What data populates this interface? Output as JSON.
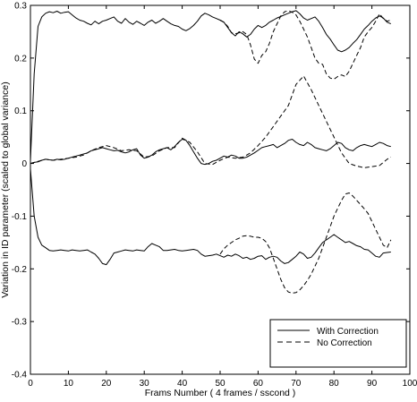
{
  "chart_data": {
    "type": "line",
    "title": "",
    "xlabel": "Frams Number ( 4 frames / sscond )",
    "ylabel": "Variation in ID parameter (scaled to global variance)",
    "xlim": [
      0,
      100
    ],
    "ylim": [
      -0.4,
      0.3
    ],
    "xticks": [
      "0",
      "10",
      "20",
      "30",
      "40",
      "50",
      "60",
      "70",
      "80",
      "90",
      "100"
    ],
    "yticks": [
      "-0.4",
      "-0.3",
      "-0.2",
      "-0.1",
      "0",
      "0.1",
      "0.2",
      "0.3"
    ],
    "grid": false,
    "legend_position": "bottom-right",
    "legend": [
      "With Correction",
      "No Correction"
    ],
    "series": [
      {
        "name": "With Correction",
        "style": "solid",
        "group": "upper",
        "x": [
          0,
          1,
          2,
          3,
          4,
          5,
          6,
          7,
          8,
          9,
          10,
          11,
          12,
          13,
          14,
          15,
          16,
          17,
          18,
          19,
          20,
          21,
          22,
          23,
          24,
          25,
          26,
          27,
          28,
          29,
          30,
          31,
          32,
          33,
          34,
          35,
          36,
          37,
          38,
          39,
          40,
          41,
          42,
          43,
          44,
          45,
          46,
          47,
          48,
          49,
          50,
          51,
          52,
          53,
          54,
          55,
          56,
          57,
          58,
          59,
          60,
          61,
          62,
          63,
          64,
          65,
          66,
          67,
          68,
          69,
          70,
          71,
          72,
          73,
          74,
          75,
          76,
          77,
          78,
          79,
          80,
          81,
          82,
          83,
          84,
          85,
          86,
          87,
          88,
          89,
          90,
          91,
          92,
          93,
          94,
          95
        ],
        "y": [
          0.005,
          0.17,
          0.26,
          0.278,
          0.285,
          0.288,
          0.286,
          0.289,
          0.285,
          0.287,
          0.288,
          0.282,
          0.276,
          0.272,
          0.27,
          0.266,
          0.263,
          0.27,
          0.265,
          0.27,
          0.272,
          0.275,
          0.278,
          0.27,
          0.266,
          0.275,
          0.268,
          0.264,
          0.27,
          0.266,
          0.262,
          0.268,
          0.272,
          0.266,
          0.27,
          0.275,
          0.27,
          0.265,
          0.262,
          0.26,
          0.255,
          0.252,
          0.256,
          0.262,
          0.27,
          0.28,
          0.285,
          0.282,
          0.278,
          0.275,
          0.272,
          0.268,
          0.258,
          0.248,
          0.242,
          0.25,
          0.246,
          0.24,
          0.245,
          0.255,
          0.262,
          0.258,
          0.262,
          0.268,
          0.272,
          0.276,
          0.279,
          0.282,
          0.285,
          0.288,
          0.29,
          0.284,
          0.276,
          0.272,
          0.275,
          0.278,
          0.27,
          0.258,
          0.245,
          0.236,
          0.225,
          0.215,
          0.212,
          0.215,
          0.22,
          0.228,
          0.235,
          0.245,
          0.255,
          0.262,
          0.27,
          0.276,
          0.28,
          0.276,
          0.268,
          0.265
        ]
      },
      {
        "name": "No Correction",
        "style": "dashed",
        "group": "upper",
        "x": [
          50,
          51,
          52,
          53,
          54,
          55,
          56,
          57,
          58,
          59,
          60,
          61,
          62,
          63,
          64,
          65,
          66,
          67,
          68,
          69,
          70,
          71,
          72,
          73,
          74,
          75,
          76,
          77,
          78,
          79,
          80,
          81,
          82,
          83,
          84,
          85,
          86,
          87,
          88,
          89,
          90,
          91,
          92,
          93,
          94,
          95
        ],
        "y": [
          0.272,
          0.268,
          0.26,
          0.248,
          0.246,
          0.248,
          0.25,
          0.245,
          0.225,
          0.198,
          0.19,
          0.205,
          0.212,
          0.228,
          0.25,
          0.265,
          0.28,
          0.288,
          0.29,
          0.287,
          0.282,
          0.27,
          0.255,
          0.24,
          0.22,
          0.2,
          0.19,
          0.188,
          0.17,
          0.162,
          0.16,
          0.165,
          0.168,
          0.165,
          0.175,
          0.19,
          0.205,
          0.22,
          0.24,
          0.25,
          0.258,
          0.27,
          0.284,
          0.275,
          0.27,
          0.272
        ]
      },
      {
        "name": "With Correction",
        "style": "solid",
        "group": "middle",
        "x": [
          0,
          1,
          2,
          3,
          4,
          5,
          6,
          7,
          8,
          9,
          10,
          11,
          12,
          13,
          14,
          15,
          16,
          17,
          18,
          19,
          20,
          21,
          22,
          23,
          24,
          25,
          26,
          27,
          28,
          29,
          30,
          31,
          32,
          33,
          34,
          35,
          36,
          37,
          38,
          39,
          40,
          41,
          42,
          43,
          44,
          45,
          46,
          47,
          48,
          49,
          50,
          51,
          52,
          53,
          54,
          55,
          56,
          57,
          58,
          59,
          60,
          61,
          62,
          63,
          64,
          65,
          66,
          67,
          68,
          69,
          70,
          71,
          72,
          73,
          74,
          75,
          76,
          77,
          78,
          79,
          80,
          81,
          82,
          83,
          84,
          85,
          86,
          87,
          88,
          89,
          90,
          91,
          92,
          93,
          94,
          95
        ],
        "y": [
          0.0,
          0.002,
          0.003,
          0.006,
          0.008,
          0.007,
          0.006,
          0.008,
          0.007,
          0.008,
          0.01,
          0.012,
          0.014,
          0.016,
          0.018,
          0.02,
          0.024,
          0.026,
          0.028,
          0.03,
          0.028,
          0.026,
          0.024,
          0.025,
          0.022,
          0.02,
          0.022,
          0.026,
          0.028,
          0.016,
          0.01,
          0.012,
          0.016,
          0.022,
          0.026,
          0.028,
          0.03,
          0.026,
          0.032,
          0.04,
          0.046,
          0.044,
          0.034,
          0.022,
          0.01,
          0.0,
          -0.002,
          0.0,
          0.004,
          0.006,
          0.01,
          0.014,
          0.012,
          0.016,
          0.014,
          0.01,
          0.01,
          0.012,
          0.016,
          0.02,
          0.025,
          0.03,
          0.032,
          0.034,
          0.036,
          0.03,
          0.034,
          0.038,
          0.044,
          0.046,
          0.04,
          0.036,
          0.034,
          0.04,
          0.036,
          0.03,
          0.028,
          0.026,
          0.024,
          0.028,
          0.034,
          0.04,
          0.038,
          0.03,
          0.026,
          0.024,
          0.03,
          0.034,
          0.036,
          0.034,
          0.032,
          0.036,
          0.04,
          0.038,
          0.034,
          0.032
        ]
      },
      {
        "name": "No Correction",
        "style": "dashed",
        "group": "middle",
        "x": [
          0,
          2,
          4,
          6,
          8,
          10,
          12,
          14,
          16,
          18,
          20,
          22,
          24,
          26,
          28,
          30,
          32,
          34,
          36,
          38,
          40,
          42,
          44,
          46,
          48,
          50,
          52,
          54,
          56,
          58,
          60,
          62,
          64,
          66,
          68,
          70,
          72,
          74,
          76,
          78,
          80,
          82,
          84,
          86,
          88,
          90,
          92,
          94,
          95
        ],
        "y": [
          0.0,
          0.004,
          0.008,
          0.006,
          0.008,
          0.01,
          0.012,
          0.016,
          0.024,
          0.03,
          0.034,
          0.03,
          0.024,
          0.026,
          0.024,
          0.012,
          0.014,
          0.024,
          0.03,
          0.03,
          0.048,
          0.04,
          0.022,
          0.0,
          -0.002,
          0.006,
          0.012,
          0.01,
          0.012,
          0.02,
          0.034,
          0.05,
          0.07,
          0.09,
          0.11,
          0.15,
          0.166,
          0.14,
          0.11,
          0.08,
          0.05,
          0.02,
          0.0,
          -0.005,
          -0.008,
          -0.006,
          -0.004,
          0.008,
          0.012
        ]
      },
      {
        "name": "With Correction",
        "style": "solid",
        "group": "lower",
        "x": [
          0,
          1,
          2,
          3,
          4,
          5,
          6,
          7,
          8,
          9,
          10,
          11,
          12,
          13,
          14,
          15,
          16,
          17,
          18,
          19,
          20,
          21,
          22,
          23,
          24,
          25,
          26,
          27,
          28,
          29,
          30,
          31,
          32,
          33,
          34,
          35,
          36,
          37,
          38,
          39,
          40,
          41,
          42,
          43,
          44,
          45,
          46,
          47,
          48,
          49,
          50,
          51,
          52,
          53,
          54,
          55,
          56,
          57,
          58,
          59,
          60,
          61,
          62,
          63,
          64,
          65,
          66,
          67,
          68,
          69,
          70,
          71,
          72,
          73,
          74,
          75,
          76,
          77,
          78,
          79,
          80,
          81,
          82,
          83,
          84,
          85,
          86,
          87,
          88,
          89,
          90,
          91,
          92,
          93,
          94,
          95
        ],
        "y": [
          -0.01,
          -0.1,
          -0.14,
          -0.155,
          -0.16,
          -0.165,
          -0.166,
          -0.165,
          -0.164,
          -0.165,
          -0.166,
          -0.164,
          -0.165,
          -0.166,
          -0.165,
          -0.164,
          -0.168,
          -0.172,
          -0.18,
          -0.19,
          -0.192,
          -0.182,
          -0.17,
          -0.168,
          -0.166,
          -0.164,
          -0.165,
          -0.166,
          -0.164,
          -0.165,
          -0.166,
          -0.158,
          -0.152,
          -0.155,
          -0.158,
          -0.165,
          -0.165,
          -0.164,
          -0.163,
          -0.165,
          -0.166,
          -0.165,
          -0.164,
          -0.163,
          -0.165,
          -0.172,
          -0.176,
          -0.175,
          -0.174,
          -0.172,
          -0.175,
          -0.178,
          -0.174,
          -0.176,
          -0.172,
          -0.175,
          -0.18,
          -0.178,
          -0.182,
          -0.18,
          -0.176,
          -0.175,
          -0.182,
          -0.178,
          -0.176,
          -0.178,
          -0.185,
          -0.19,
          -0.188,
          -0.182,
          -0.176,
          -0.168,
          -0.172,
          -0.18,
          -0.178,
          -0.17,
          -0.16,
          -0.15,
          -0.145,
          -0.14,
          -0.135,
          -0.14,
          -0.145,
          -0.15,
          -0.148,
          -0.152,
          -0.156,
          -0.158,
          -0.163,
          -0.164,
          -0.17,
          -0.176,
          -0.178,
          -0.17,
          -0.169,
          -0.168
        ]
      },
      {
        "name": "No Correction",
        "style": "dashed",
        "group": "lower",
        "x": [
          50,
          51,
          52,
          53,
          54,
          55,
          56,
          57,
          58,
          59,
          60,
          61,
          62,
          63,
          64,
          65,
          66,
          67,
          68,
          69,
          70,
          71,
          72,
          73,
          74,
          75,
          76,
          77,
          78,
          79,
          80,
          81,
          82,
          83,
          84,
          85,
          86,
          87,
          88,
          89,
          90,
          91,
          92,
          93,
          94,
          95
        ],
        "y": [
          -0.172,
          -0.162,
          -0.155,
          -0.15,
          -0.145,
          -0.142,
          -0.138,
          -0.137,
          -0.138,
          -0.14,
          -0.14,
          -0.142,
          -0.148,
          -0.16,
          -0.18,
          -0.2,
          -0.22,
          -0.236,
          -0.244,
          -0.246,
          -0.245,
          -0.24,
          -0.232,
          -0.222,
          -0.21,
          -0.195,
          -0.18,
          -0.16,
          -0.14,
          -0.12,
          -0.1,
          -0.085,
          -0.07,
          -0.058,
          -0.056,
          -0.062,
          -0.07,
          -0.078,
          -0.086,
          -0.095,
          -0.11,
          -0.125,
          -0.14,
          -0.155,
          -0.16,
          -0.145
        ]
      }
    ]
  }
}
